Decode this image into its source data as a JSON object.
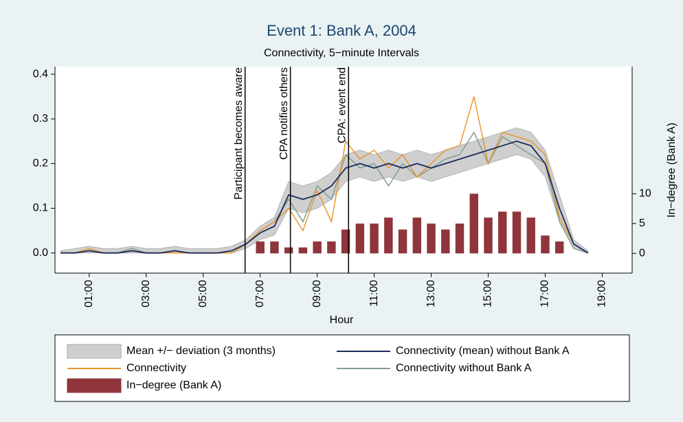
{
  "chart_data": {
    "type": "line",
    "title": "Event 1: Bank A, 2004",
    "subtitle": "Connectivity, 5−minute Intervals",
    "x_label": "Hour",
    "y2_label": "In−degree (Bank A)",
    "x": [
      0,
      0.5,
      1,
      1.5,
      2,
      2.5,
      3,
      3.5,
      4,
      4.5,
      5,
      5.5,
      6,
      6.5,
      7,
      7.5,
      8,
      8.5,
      9,
      9.5,
      10,
      10.5,
      11,
      11.5,
      12,
      12.5,
      13,
      13.5,
      14,
      14.5,
      15,
      15.5,
      16,
      16.5,
      17,
      17.5,
      18,
      18.5
    ],
    "xlim": [
      -0.2,
      20.05
    ],
    "xticks": [
      {
        "value": 1,
        "label": "01:00"
      },
      {
        "value": 3,
        "label": "03:00"
      },
      {
        "value": 5,
        "label": "05:00"
      },
      {
        "value": 7,
        "label": "07:00"
      },
      {
        "value": 9,
        "label": "09:00"
      },
      {
        "value": 11,
        "label": "11:00"
      },
      {
        "value": 13,
        "label": "13:00"
      },
      {
        "value": 15,
        "label": "15:00"
      },
      {
        "value": 17,
        "label": "17:00"
      },
      {
        "value": 19,
        "label": "19:00"
      }
    ],
    "ylim": [
      -0.045,
      0.417
    ],
    "yticks": [
      {
        "value": 0,
        "label": "0.0"
      },
      0.1,
      0.2,
      0.3,
      0.4
    ],
    "y2lim": [
      -3.3,
      31.3
    ],
    "y2ticks": [
      0,
      5,
      10
    ],
    "band": {
      "name": "Mean +/− deviation (3 months)",
      "color": "#cfcfcf",
      "lower": [
        0,
        0,
        0,
        0,
        0,
        0,
        0,
        0,
        0,
        0,
        0,
        0,
        0,
        0.01,
        0.03,
        0.04,
        0.1,
        0.09,
        0.1,
        0.12,
        0.16,
        0.17,
        0.16,
        0.17,
        0.16,
        0.17,
        0.16,
        0.17,
        0.18,
        0.19,
        0.2,
        0.21,
        0.22,
        0.21,
        0.17,
        0.07,
        0.01,
        0
      ],
      "upper": [
        0.005,
        0.01,
        0.015,
        0.01,
        0.01,
        0.015,
        0.01,
        0.01,
        0.015,
        0.01,
        0.01,
        0.01,
        0.015,
        0.03,
        0.06,
        0.08,
        0.16,
        0.15,
        0.16,
        0.18,
        0.22,
        0.23,
        0.22,
        0.23,
        0.22,
        0.23,
        0.22,
        0.23,
        0.24,
        0.25,
        0.26,
        0.27,
        0.28,
        0.27,
        0.23,
        0.13,
        0.03,
        0.005
      ]
    },
    "series": [
      {
        "name": "Connectivity (mean) without Bank A",
        "color": "#1a2a5a",
        "values": [
          0,
          0,
          0.005,
          0,
          0,
          0.005,
          0,
          0,
          0.005,
          0,
          0,
          0,
          0.005,
          0.02,
          0.045,
          0.06,
          0.13,
          0.12,
          0.13,
          0.15,
          0.19,
          0.2,
          0.19,
          0.2,
          0.19,
          0.2,
          0.19,
          0.2,
          0.21,
          0.22,
          0.23,
          0.24,
          0.25,
          0.24,
          0.2,
          0.1,
          0.02,
          0
        ]
      },
      {
        "name": "Connectivity",
        "color": "#e8962c",
        "values": [
          0,
          0,
          0.01,
          0,
          0,
          0.005,
          0,
          0,
          0,
          0,
          0,
          0,
          0,
          0.02,
          0.05,
          0.07,
          0.1,
          0.05,
          0.14,
          0.07,
          0.25,
          0.21,
          0.23,
          0.19,
          0.22,
          0.17,
          0.2,
          0.23,
          0.24,
          0.35,
          0.2,
          0.27,
          0.26,
          0.25,
          0.22,
          0.08,
          0.02,
          0
        ]
      },
      {
        "name": "Connectivity without Bank A",
        "color": "#7f9e8c",
        "values": [
          0,
          0,
          0.005,
          0,
          0,
          0.01,
          0,
          0,
          0.005,
          0,
          0,
          0,
          0,
          0.02,
          0.05,
          0.07,
          0.12,
          0.07,
          0.15,
          0.12,
          0.22,
          0.19,
          0.2,
          0.15,
          0.2,
          0.17,
          0.19,
          0.21,
          0.22,
          0.27,
          0.2,
          0.26,
          0.24,
          0.22,
          0.2,
          0.07,
          0.01,
          0
        ]
      },
      {
        "name": "In−degree (Bank A)",
        "color": "#90353b",
        "axis": "y2",
        "type": "bar",
        "values": [
          0,
          0,
          0,
          0,
          0,
          0,
          0,
          0,
          0,
          0,
          0,
          0,
          0,
          0,
          2,
          2,
          1,
          1,
          2,
          2,
          4,
          5,
          5,
          6,
          4,
          6,
          5,
          4,
          5,
          10,
          6,
          7,
          7,
          6,
          3,
          2,
          0,
          0
        ]
      }
    ],
    "annotations": [
      {
        "x": 6.47,
        "text": "Participant becomes aware"
      },
      {
        "x": 8.06,
        "text": "CPA notifies others"
      },
      {
        "x": 10.1,
        "text": "CPA: event end"
      }
    ]
  }
}
